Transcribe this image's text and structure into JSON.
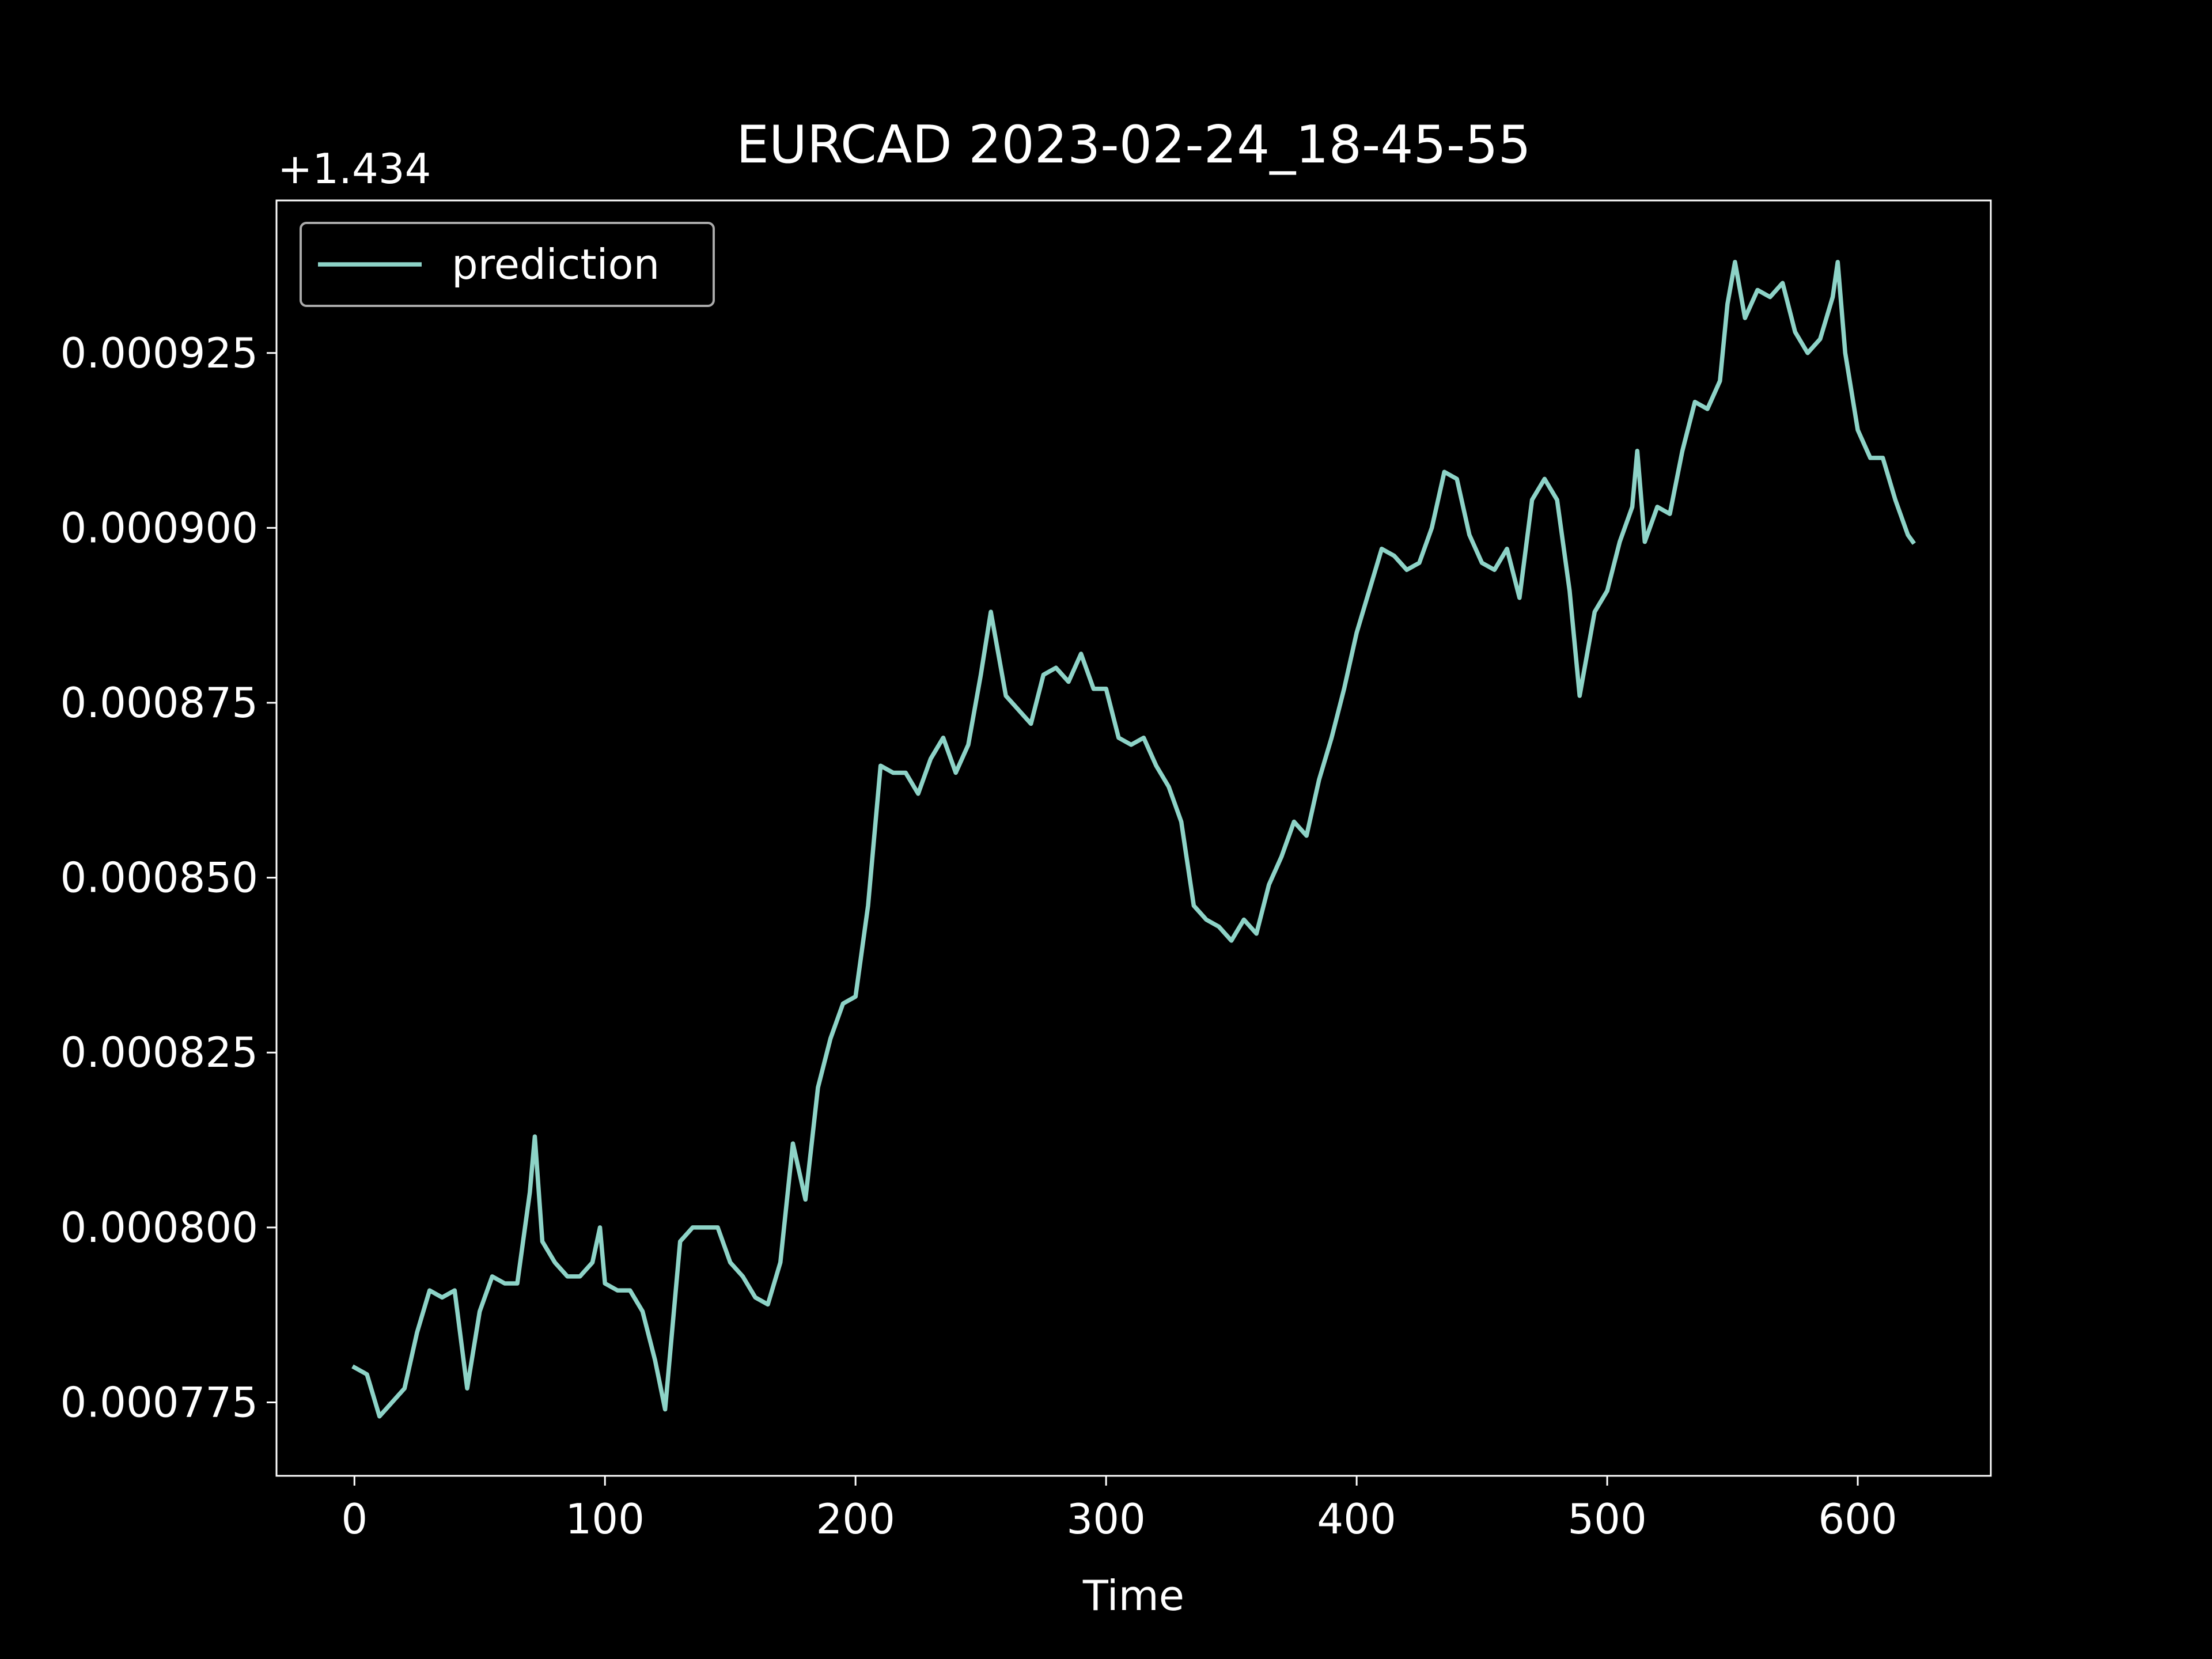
{
  "chart_data": {
    "type": "line",
    "title": "EURCAD 2023-02-24_18-45-55",
    "x_label": "Time",
    "y_offset_text": "+1.434",
    "x": [
      0,
      5,
      10,
      15,
      20,
      25,
      30,
      35,
      40,
      45,
      50,
      55,
      60,
      65,
      70,
      72,
      75,
      80,
      85,
      90,
      95,
      98,
      100,
      105,
      110,
      115,
      120,
      124,
      130,
      135,
      140,
      145,
      150,
      155,
      160,
      165,
      170,
      175,
      180,
      185,
      190,
      195,
      200,
      205,
      210,
      215,
      220,
      225,
      230,
      235,
      240,
      245,
      250,
      254,
      260,
      265,
      270,
      275,
      280,
      285,
      290,
      295,
      300,
      305,
      310,
      315,
      320,
      325,
      330,
      335,
      340,
      345,
      350,
      355,
      360,
      365,
      370,
      375,
      380,
      385,
      390,
      395,
      400,
      405,
      410,
      415,
      420,
      425,
      430,
      435,
      440,
      445,
      450,
      455,
      460,
      465,
      470,
      475,
      480,
      485,
      489,
      495,
      500,
      505,
      510,
      512,
      515,
      520,
      525,
      530,
      535,
      540,
      545,
      548,
      551,
      555,
      560,
      565,
      570,
      575,
      580,
      585,
      590,
      592,
      595,
      600,
      605,
      610,
      615,
      620,
      622
    ],
    "series": [
      {
        "name": "prediction",
        "color": "#8dd3c7",
        "values": [
          0.00078,
          0.000779,
          0.000773,
          0.000775,
          0.000777,
          0.000785,
          0.000791,
          0.00079,
          0.000791,
          0.000777,
          0.000788,
          0.000793,
          0.000792,
          0.000792,
          0.000805,
          0.000813,
          0.000798,
          0.000795,
          0.000793,
          0.000793,
          0.000795,
          0.0008,
          0.000792,
          0.000791,
          0.000791,
          0.000788,
          0.000781,
          0.000774,
          0.000798,
          0.0008,
          0.0008,
          0.0008,
          0.000795,
          0.000793,
          0.00079,
          0.000789,
          0.000795,
          0.000812,
          0.000804,
          0.00082,
          0.000827,
          0.000832,
          0.000833,
          0.000846,
          0.000866,
          0.000865,
          0.000865,
          0.000862,
          0.000867,
          0.00087,
          0.000865,
          0.000869,
          0.000879,
          0.000888,
          0.000876,
          0.000874,
          0.000872,
          0.000879,
          0.00088,
          0.000878,
          0.000882,
          0.000877,
          0.000877,
          0.00087,
          0.000869,
          0.00087,
          0.000866,
          0.000863,
          0.000858,
          0.000846,
          0.000844,
          0.000843,
          0.000841,
          0.000844,
          0.000842,
          0.000849,
          0.000853,
          0.000858,
          0.000856,
          0.000864,
          0.00087,
          0.000877,
          0.000885,
          0.000891,
          0.000897,
          0.000896,
          0.000894,
          0.000895,
          0.0009,
          0.000908,
          0.000907,
          0.000899,
          0.000895,
          0.000894,
          0.000897,
          0.00089,
          0.000904,
          0.000907,
          0.000904,
          0.000891,
          0.000876,
          0.000888,
          0.000891,
          0.000898,
          0.000903,
          0.000911,
          0.000898,
          0.000903,
          0.000902,
          0.000911,
          0.000918,
          0.000917,
          0.000921,
          0.000932,
          0.000938,
          0.00093,
          0.000934,
          0.000933,
          0.000935,
          0.000928,
          0.000925,
          0.000927,
          0.000933,
          0.000938,
          0.000925,
          0.000914,
          0.00091,
          0.00091,
          0.000904,
          0.000899,
          0.000898
        ]
      }
    ],
    "xlim": [
      -31.1,
      653.1
    ],
    "xticks": [
      0,
      100,
      200,
      300,
      400,
      500,
      600
    ],
    "ylim": [
      0.0007645,
      0.0009468
    ],
    "yticks": [
      0.000775,
      {
        "value": 0.0008,
        "label": "0.000800"
      },
      0.000825,
      {
        "value": 0.00085,
        "label": "0.000850"
      },
      0.000875,
      {
        "value": 0.0009,
        "label": "0.000900"
      },
      0.000925
    ],
    "legend": "upper left"
  }
}
